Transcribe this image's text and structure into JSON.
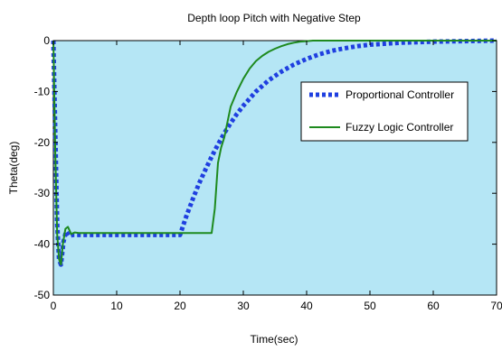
{
  "chart_data": {
    "type": "line",
    "title": "Depth loop Pitch with Negative Step",
    "xlabel": "Time(sec)",
    "ylabel": "Theta(deg)",
    "xlim": [
      0,
      70
    ],
    "ylim": [
      -50,
      0
    ],
    "xticks": [
      0,
      10,
      20,
      30,
      40,
      50,
      60,
      70
    ],
    "yticks": [
      0,
      -10,
      -20,
      -30,
      -40,
      -50
    ],
    "grid": false,
    "legend_position": "right",
    "plot_background": "#b5e6f5",
    "series": [
      {
        "name": "Proportional Controller",
        "color": "#1f3fe0",
        "style": "dashed",
        "x": [
          0,
          0.3,
          0.6,
          0.9,
          1.2,
          1.6,
          2.0,
          2.5,
          3.0,
          4.0,
          10,
          15,
          20,
          21,
          22,
          23,
          24,
          25,
          26,
          27,
          28,
          29,
          30,
          32,
          34,
          36,
          38,
          40,
          42,
          44,
          46,
          48,
          50,
          55,
          60,
          65,
          70
        ],
        "y": [
          0,
          -18,
          -36,
          -43,
          -44,
          -39.5,
          -37.5,
          -38.4,
          -38.2,
          -38.2,
          -38.2,
          -38.2,
          -38.2,
          -34.5,
          -31.2,
          -28.1,
          -25.4,
          -22.8,
          -20.4,
          -18.2,
          -16.2,
          -14.4,
          -12.8,
          -10.0,
          -7.8,
          -6.1,
          -4.7,
          -3.6,
          -2.7,
          -2.0,
          -1.5,
          -1.1,
          -0.8,
          -0.4,
          -0.2,
          -0.1,
          0
        ]
      },
      {
        "name": "Fuzzy Logic Controller",
        "color": "#1e8a1e",
        "style": "solid",
        "x": [
          0,
          0.3,
          0.6,
          0.9,
          1.2,
          1.5,
          1.9,
          2.3,
          2.8,
          3.4,
          4.0,
          10,
          15,
          20,
          25,
          25.5,
          26,
          26.5,
          27,
          27.5,
          28,
          28.5,
          29,
          30,
          31,
          32,
          33,
          34,
          35,
          36,
          37,
          38,
          39,
          40,
          41,
          45,
          50,
          60,
          70
        ],
        "y": [
          0,
          -22,
          -38,
          -43,
          -44,
          -40,
          -37,
          -36.6,
          -38,
          -37.7,
          -37.8,
          -37.8,
          -37.8,
          -37.8,
          -37.8,
          -33,
          -24,
          -21,
          -19,
          -16,
          -13,
          -11.5,
          -10,
          -7.5,
          -5.5,
          -4,
          -3,
          -2.2,
          -1.6,
          -1.1,
          -0.7,
          -0.4,
          -0.2,
          -0.1,
          0,
          0,
          0,
          0,
          0
        ]
      }
    ]
  }
}
